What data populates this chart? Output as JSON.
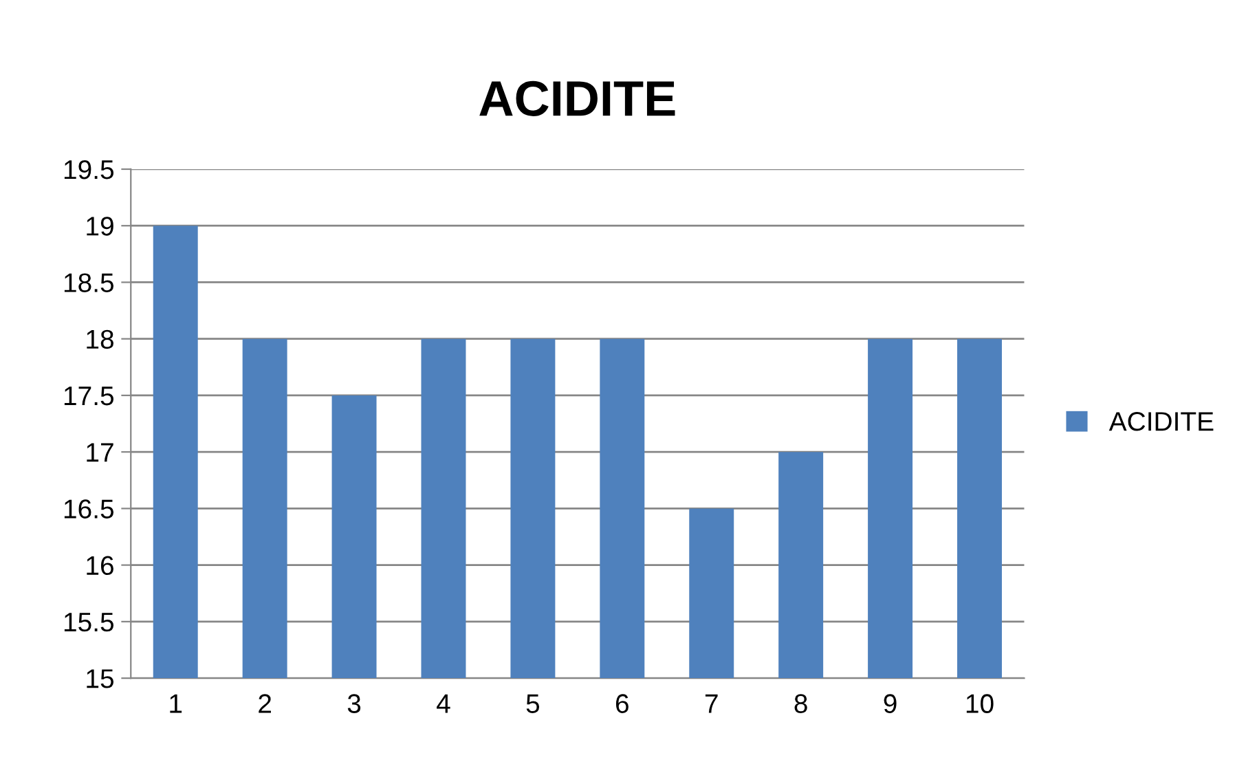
{
  "chart_data": {
    "type": "bar",
    "title": "ACIDITE",
    "categories": [
      "1",
      "2",
      "3",
      "4",
      "5",
      "6",
      "7",
      "8",
      "9",
      "10"
    ],
    "series": [
      {
        "name": "ACIDITE",
        "color": "#4f81bd",
        "values": [
          19,
          18,
          17.5,
          18,
          18,
          18,
          16.5,
          17,
          18,
          18
        ]
      }
    ],
    "ylim": [
      15,
      19.5
    ],
    "yticks": [
      15,
      15.5,
      16,
      16.5,
      17,
      17.5,
      18,
      18.5,
      19,
      19.5
    ],
    "grid": "y",
    "legend": "right"
  }
}
